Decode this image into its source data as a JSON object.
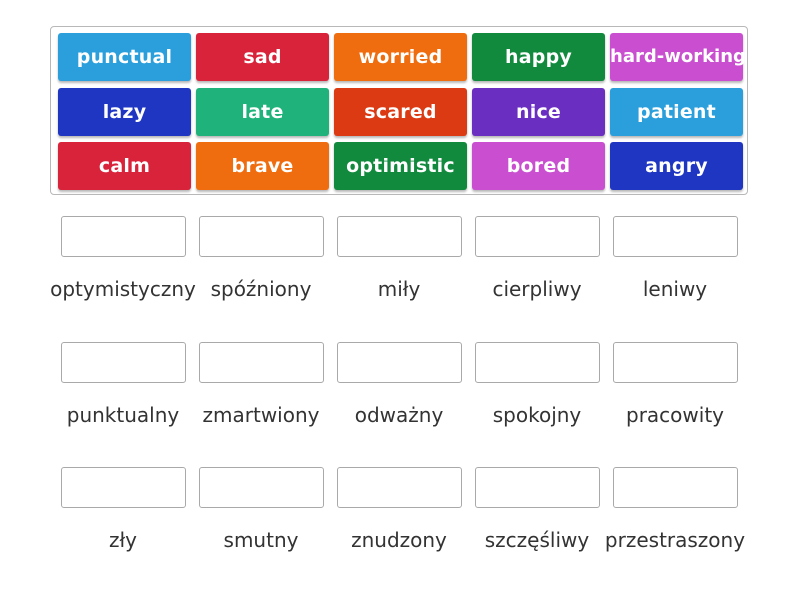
{
  "tiles": [
    {
      "label": "punctual",
      "color": "#2a9fdc"
    },
    {
      "label": "sad",
      "color": "#d9233b"
    },
    {
      "label": "worried",
      "color": "#ef6d0f"
    },
    {
      "label": "happy",
      "color": "#118a3e"
    },
    {
      "label": "hard-working",
      "color": "#c94fd0"
    },
    {
      "label": "lazy",
      "color": "#1e36c2"
    },
    {
      "label": "late",
      "color": "#1fb27a"
    },
    {
      "label": "scared",
      "color": "#db3a12"
    },
    {
      "label": "nice",
      "color": "#6a2fc0"
    },
    {
      "label": "patient",
      "color": "#2a9fdc"
    },
    {
      "label": "calm",
      "color": "#d9233b"
    },
    {
      "label": "brave",
      "color": "#ef6d0f"
    },
    {
      "label": "optimistic",
      "color": "#118a3e"
    },
    {
      "label": "bored",
      "color": "#c94fd0"
    },
    {
      "label": "angry",
      "color": "#1e36c2"
    }
  ],
  "targets": [
    {
      "label": "optymistyczny"
    },
    {
      "label": "spóźniony"
    },
    {
      "label": "miły"
    },
    {
      "label": "cierpliwy"
    },
    {
      "label": "leniwy"
    },
    {
      "label": "punktualny"
    },
    {
      "label": "zmartwiony"
    },
    {
      "label": "odważny"
    },
    {
      "label": "spokojny"
    },
    {
      "label": "pracowity"
    },
    {
      "label": "zły"
    },
    {
      "label": "smutny"
    },
    {
      "label": "znudzony"
    },
    {
      "label": "szczęśliwy"
    },
    {
      "label": "przestraszony"
    }
  ]
}
